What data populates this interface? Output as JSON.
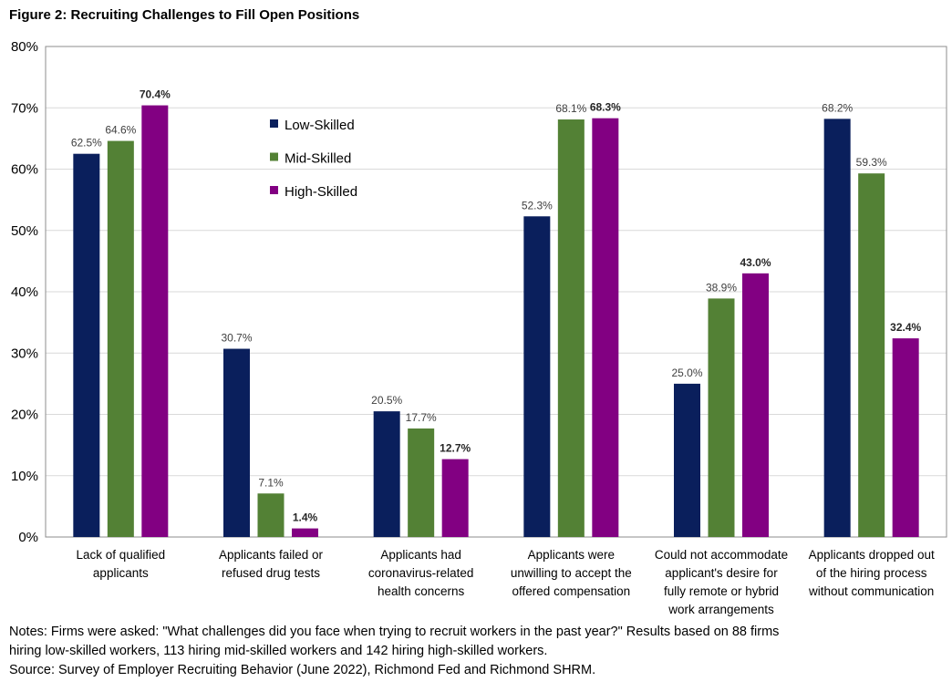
{
  "figure_title": "Figure 2: Recruiting Challenges to Fill Open Positions",
  "notes": [
    "Notes: Firms were asked: \"What challenges did you face when trying to recruit workers in the past year?\" Results based on 88 firms",
    "hiring low-skilled workers, 113 hiring mid-skilled workers and 142 hiring high-skilled workers.",
    "Source: Survey of Employer Recruiting Behavior (June 2022), Richmond Fed and Richmond SHRM."
  ],
  "chart_data": {
    "type": "bar",
    "title": "Figure 2: Recruiting Challenges to Fill Open Positions",
    "xlabel": "",
    "ylabel": "",
    "ylim": [
      0,
      80
    ],
    "yticks": [
      "0%",
      "10%",
      "20%",
      "30%",
      "40%",
      "50%",
      "60%",
      "70%",
      "80%"
    ],
    "grid": true,
    "legend_position": "top-center-left",
    "categories": [
      [
        "Lack of qualified",
        "applicants"
      ],
      [
        "Applicants failed or",
        "refused drug tests"
      ],
      [
        "Applicants had",
        "coronavirus-related",
        "health concerns"
      ],
      [
        "Applicants were",
        "unwilling to accept the",
        "offered compensation"
      ],
      [
        "Could not accommodate",
        "applicant's desire for",
        "fully remote or hybrid",
        "work arrangements"
      ],
      [
        "Applicants dropped out",
        "of the hiring process",
        "without communication"
      ]
    ],
    "series": [
      {
        "name": "Low-Skilled",
        "color": "#0a1f5c",
        "values": [
          62.5,
          30.7,
          20.5,
          52.3,
          25.0,
          68.2
        ],
        "labels": [
          "62.5%",
          "30.7%",
          "20.5%",
          "52.3%",
          "25.0%",
          "68.2%"
        ]
      },
      {
        "name": "Mid-Skilled",
        "color": "#538135",
        "values": [
          64.6,
          7.1,
          17.7,
          68.1,
          38.9,
          59.3
        ],
        "labels": [
          "64.6%",
          "7.1%",
          "17.7%",
          "68.1%",
          "38.9%",
          "59.3%"
        ]
      },
      {
        "name": "High-Skilled",
        "color": "#820082",
        "values": [
          70.4,
          1.4,
          12.7,
          68.3,
          43.0,
          32.4
        ],
        "labels": [
          "70.4%",
          "1.4%",
          "12.7%",
          "68.3%",
          "43.0%",
          "32.4%"
        ]
      }
    ]
  }
}
